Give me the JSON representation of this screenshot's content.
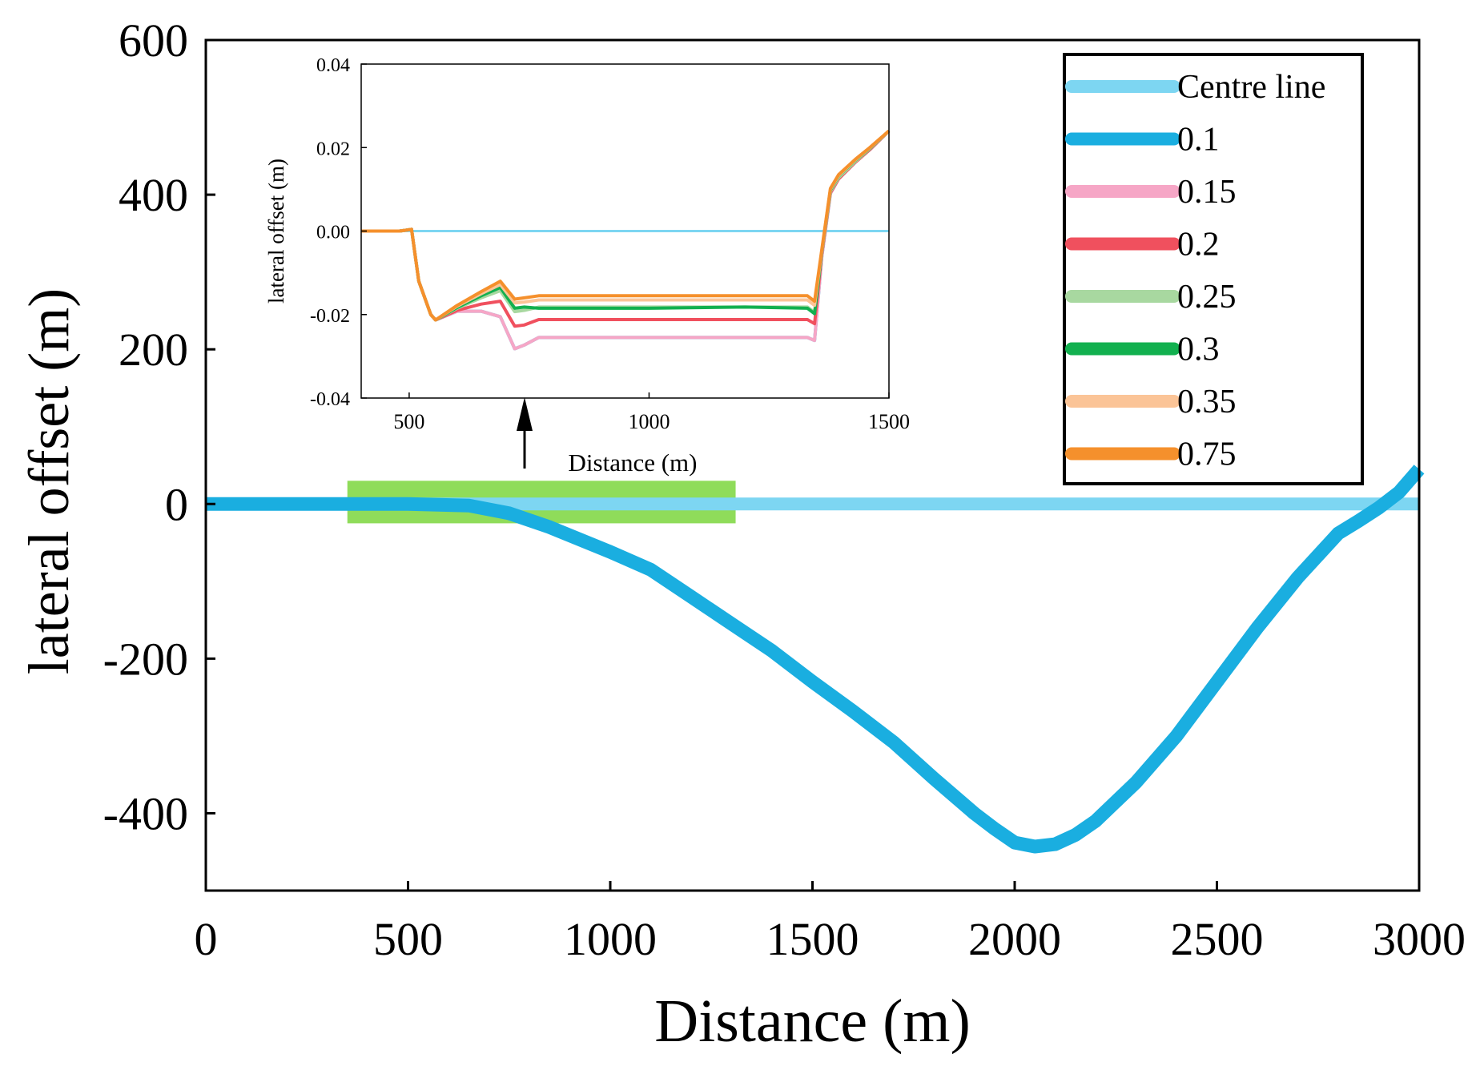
{
  "chart_data": [
    {
      "type": "line",
      "role": "main",
      "xlabel": "Distance (m)",
      "ylabel": "lateral offset (m)",
      "xlim": [
        0,
        3000
      ],
      "ylim": [
        -500,
        600
      ],
      "xticks": [
        0,
        500,
        1000,
        1500,
        2000,
        2500,
        3000
      ],
      "yticks": [
        -400,
        -200,
        0,
        200,
        400,
        600
      ],
      "highlight_region": {
        "x": [
          350,
          1310
        ],
        "y": [
          -25,
          30
        ],
        "color": "#8fdc5a"
      },
      "series": [
        {
          "name": "Centre line",
          "color": "#7dd6f2",
          "x": [
            0,
            3000
          ],
          "y": [
            0,
            0
          ]
        },
        {
          "name": "0.1",
          "color": "#1aaee0",
          "x": [
            0,
            500,
            650,
            750,
            850,
            1000,
            1100,
            1200,
            1300,
            1400,
            1500,
            1600,
            1700,
            1800,
            1900,
            1950,
            2000,
            2050,
            2100,
            2150,
            2200,
            2300,
            2400,
            2500,
            2600,
            2700,
            2800,
            2850,
            2900,
            2950,
            3000
          ],
          "y": [
            0,
            0,
            -2,
            -12,
            -30,
            -62,
            -85,
            -120,
            -155,
            -190,
            -230,
            -268,
            -308,
            -355,
            -400,
            -420,
            -438,
            -443,
            -440,
            -428,
            -410,
            -360,
            -300,
            -230,
            -160,
            -95,
            -38,
            -22,
            -5,
            15,
            45
          ]
        }
      ]
    },
    {
      "type": "line",
      "role": "inset",
      "xlabel": "Distance  (m)",
      "ylabel": "lateral offset (m)",
      "xlim": [
        400,
        1500
      ],
      "ylim": [
        -0.04,
        0.04
      ],
      "xticks": [
        500,
        1000,
        1500
      ],
      "yticks": [
        -0.04,
        -0.02,
        0.0,
        0.02,
        0.04
      ],
      "ytick_labels": [
        "-0.04",
        "-0.02",
        "0.00",
        "0.02",
        "0.04"
      ],
      "x": [
        400,
        480,
        505,
        520,
        545,
        555,
        600,
        650,
        690,
        720,
        740,
        770,
        1000,
        1200,
        1330,
        1345,
        1360,
        1378,
        1395,
        1430,
        1460,
        1500
      ],
      "series": [
        {
          "name": "Centre line",
          "color": "#7dd6f2",
          "y": [
            0,
            0,
            0,
            0,
            0,
            0,
            0,
            0,
            0,
            0,
            0,
            0,
            0,
            0,
            0,
            0,
            0,
            0,
            0,
            0,
            0,
            0
          ]
        },
        {
          "name": "0.1",
          "color": "#1aaee0",
          "y": [
            0,
            0,
            0.0004,
            -0.012,
            -0.02,
            -0.0213,
            -0.0192,
            -0.0192,
            -0.0205,
            -0.0282,
            -0.0273,
            -0.0255,
            -0.0255,
            -0.0255,
            -0.0255,
            -0.0262,
            -0.0062,
            0.009,
            0.0125,
            0.0165,
            0.0195,
            0.024
          ]
        },
        {
          "name": "0.15",
          "color": "#f6a6c6",
          "y": [
            0,
            0,
            0.0004,
            -0.012,
            -0.02,
            -0.0213,
            -0.0192,
            -0.0192,
            -0.0205,
            -0.0282,
            -0.0273,
            -0.0255,
            -0.0255,
            -0.0255,
            -0.0255,
            -0.0262,
            -0.0062,
            0.009,
            0.0125,
            0.0165,
            0.0195,
            0.024
          ]
        },
        {
          "name": "0.2",
          "color": "#f0505e",
          "y": [
            0,
            0,
            0.0004,
            -0.012,
            -0.02,
            -0.0213,
            -0.019,
            -0.0175,
            -0.0168,
            -0.0228,
            -0.0225,
            -0.0212,
            -0.0212,
            -0.0212,
            -0.0212,
            -0.0222,
            -0.0055,
            0.0092,
            0.0125,
            0.0165,
            0.0195,
            0.024
          ]
        },
        {
          "name": "0.25",
          "color": "#a8d8a0",
          "y": [
            0,
            0,
            0.0004,
            -0.012,
            -0.02,
            -0.0213,
            -0.0185,
            -0.016,
            -0.0143,
            -0.0193,
            -0.019,
            -0.0182,
            -0.0182,
            -0.0182,
            -0.0182,
            -0.0195,
            -0.005,
            0.0095,
            0.0128,
            0.0167,
            0.0197,
            0.024
          ]
        },
        {
          "name": "0.3",
          "color": "#12b04f",
          "y": [
            0,
            0,
            0.0004,
            -0.012,
            -0.02,
            -0.0213,
            -0.0183,
            -0.0155,
            -0.0135,
            -0.0185,
            -0.0182,
            -0.0185,
            -0.0185,
            -0.0182,
            -0.0185,
            -0.0198,
            -0.005,
            0.0098,
            0.0132,
            0.017,
            0.0198,
            0.024
          ]
        },
        {
          "name": "0.35",
          "color": "#fbc497",
          "y": [
            0,
            0,
            0.0004,
            -0.012,
            -0.02,
            -0.0213,
            -0.018,
            -0.015,
            -0.0128,
            -0.0172,
            -0.017,
            -0.0165,
            -0.0165,
            -0.0165,
            -0.0165,
            -0.0178,
            -0.0048,
            0.01,
            0.0133,
            0.0171,
            0.0199,
            0.024
          ]
        },
        {
          "name": "0.75",
          "color": "#f5902c",
          "y": [
            0,
            0,
            0.0004,
            -0.012,
            -0.02,
            -0.0213,
            -0.0178,
            -0.0145,
            -0.012,
            -0.0163,
            -0.016,
            -0.0155,
            -0.0155,
            -0.0155,
            -0.0155,
            -0.0168,
            -0.0045,
            0.0102,
            0.0135,
            0.0172,
            0.02,
            0.024
          ]
        }
      ]
    }
  ],
  "legend": {
    "placement": "top-right",
    "items": [
      {
        "label": "Centre line",
        "color": "#7dd6f2"
      },
      {
        "label": "0.1",
        "color": "#1aaee0"
      },
      {
        "label": "0.15",
        "color": "#f6a6c6"
      },
      {
        "label": "0.2",
        "color": "#f0505e"
      },
      {
        "label": "0.25",
        "color": "#a8d8a0"
      },
      {
        "label": "0.3",
        "color": "#12b04f"
      },
      {
        "label": "0.35",
        "color": "#fbc497"
      },
      {
        "label": "0.75",
        "color": "#f5902c"
      }
    ]
  }
}
